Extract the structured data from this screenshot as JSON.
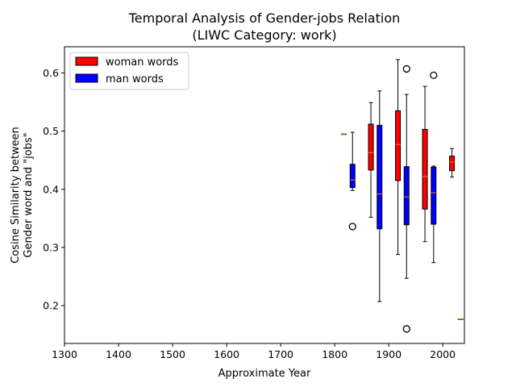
{
  "chart_data": {
    "type": "box",
    "title_line1": "Temporal Analysis of Gender-jobs Relation",
    "title_line2": "(LIWC Category: work)",
    "xlabel": "Approximate Year",
    "ylabel_line1": "Cosine Similarity between",
    "ylabel_line2": "Gender word and \"jobs\"",
    "xlim": [
      1300,
      2040
    ],
    "ylim": [
      0.135,
      0.645
    ],
    "xticks": [
      1300,
      1400,
      1500,
      1600,
      1700,
      1800,
      1900,
      2000
    ],
    "yticks": [
      0.2,
      0.3,
      0.4,
      0.5,
      0.6
    ],
    "legend_position": "top-left",
    "series": [
      {
        "name": "woman words",
        "color": "#ff0000",
        "boxes": [
          {
            "x": 1817,
            "whislo": 0.495,
            "q1": 0.495,
            "med": 0.495,
            "q3": 0.495,
            "whishi": 0.495,
            "fliers": []
          },
          {
            "x": 1867,
            "whislo": 0.352,
            "q1": 0.433,
            "med": 0.463,
            "q3": 0.512,
            "whishi": 0.549,
            "fliers": []
          },
          {
            "x": 1917,
            "whislo": 0.288,
            "q1": 0.415,
            "med": 0.477,
            "q3": 0.535,
            "whishi": 0.623,
            "fliers": []
          },
          {
            "x": 1967,
            "whislo": 0.31,
            "q1": 0.366,
            "med": 0.422,
            "q3": 0.503,
            "whishi": 0.577,
            "fliers": []
          },
          {
            "x": 2017,
            "whislo": 0.421,
            "q1": 0.432,
            "med": 0.447,
            "q3": 0.457,
            "whishi": 0.47,
            "fliers": []
          }
        ]
      },
      {
        "name": "man words",
        "color": "#0000ff",
        "boxes": [
          {
            "x": 1833,
            "whislo": 0.398,
            "q1": 0.403,
            "med": 0.416,
            "q3": 0.443,
            "whishi": 0.498,
            "fliers": [
              0.336
            ]
          },
          {
            "x": 1883,
            "whislo": 0.207,
            "q1": 0.332,
            "med": 0.392,
            "q3": 0.51,
            "whishi": 0.569,
            "fliers": []
          },
          {
            "x": 1933,
            "whislo": 0.247,
            "q1": 0.339,
            "med": 0.387,
            "q3": 0.439,
            "whishi": 0.563,
            "fliers": [
              0.607,
              0.16
            ]
          },
          {
            "x": 1983,
            "whislo": 0.274,
            "q1": 0.34,
            "med": 0.394,
            "q3": 0.438,
            "whishi": 0.44,
            "fliers": [
              0.596
            ]
          },
          {
            "x": 2033,
            "whislo": 0.177,
            "q1": 0.177,
            "med": 0.177,
            "q3": 0.177,
            "whishi": 0.177,
            "fliers": []
          }
        ]
      }
    ],
    "median_color": "#ff7f0e"
  }
}
